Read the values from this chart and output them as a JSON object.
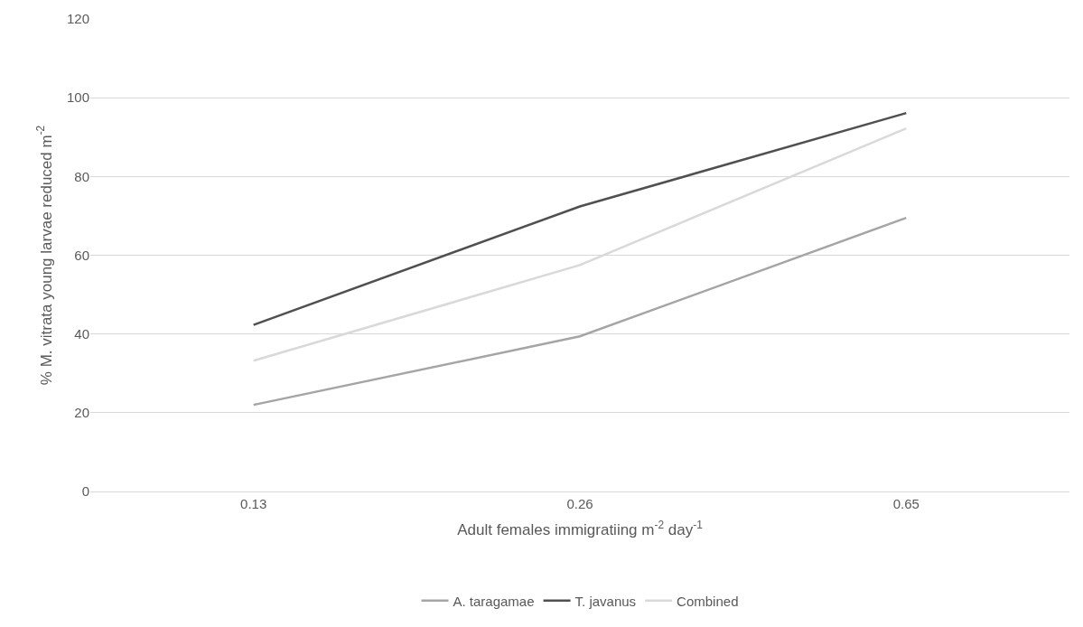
{
  "chart_data": {
    "type": "line",
    "xlabel": "Adult females immigratiing m$^{-2}$ day$^{-1}$",
    "ylabel": "% M. vitrata young larvae reduced m$^{-2}$",
    "categories": [
      "0.13",
      "0.26",
      "0.65"
    ],
    "series": [
      {
        "name": "A. taragamae",
        "color": "#a5a5a5",
        "values": [
          22.0,
          39.4,
          69.5
        ]
      },
      {
        "name": "T. javanus",
        "color": "#505050",
        "values": [
          42.3,
          72.4,
          96.1
        ]
      },
      {
        "name": "Combined",
        "color": "#d9d9d9",
        "values": [
          33.2,
          57.5,
          92.2
        ]
      }
    ],
    "ylim": [
      0,
      120
    ],
    "yticks": [
      0,
      20,
      40,
      60,
      80,
      100,
      120
    ],
    "grid": "y",
    "legend": "bottom",
    "marker": "none",
    "line_style": "solid"
  }
}
